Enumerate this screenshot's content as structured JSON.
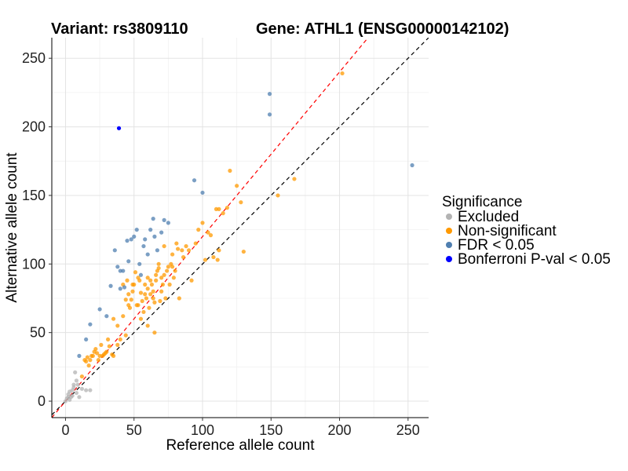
{
  "chart_data": {
    "type": "scatter",
    "title_left": "Variant: rs3809110",
    "title_right": "Gene: ATHL1 (ENSG00000142102)",
    "xlabel": "Reference allele count",
    "ylabel": "Alternative allele count",
    "xlim": [
      -10,
      265
    ],
    "ylim": [
      -12,
      265
    ],
    "xticks": [
      0,
      50,
      100,
      150,
      200,
      250
    ],
    "yticks": [
      0,
      50,
      100,
      150,
      200,
      250
    ],
    "grid": true,
    "legend": {
      "title": "Significance",
      "placement": "right",
      "entries": [
        {
          "label": "Excluded",
          "color": "#b3b3b3"
        },
        {
          "label": "Non-significant",
          "color": "#ff9900"
        },
        {
          "label": "FDR < 0.05",
          "color": "#4f7fb0"
        },
        {
          "label": "Bonferroni P-val < 0.05",
          "color": "#0000ff"
        }
      ]
    },
    "reference_lines": [
      {
        "slope": 1.0,
        "intercept": 0,
        "color": "#000000",
        "style": "dashed"
      },
      {
        "slope": 1.2,
        "intercept": 0,
        "color": "#ff0000",
        "style": "dashed"
      }
    ],
    "series": [
      {
        "name": "Excluded",
        "color": "#b3b3b3",
        "x": [
          0,
          1,
          2,
          3,
          3,
          4,
          5,
          5,
          6,
          7,
          8,
          9,
          10,
          12,
          15,
          18,
          8,
          2,
          6
        ],
        "y": [
          0,
          2,
          5,
          1,
          7,
          3,
          8,
          4,
          12,
          21,
          6,
          12,
          3,
          9,
          8,
          8,
          15,
          3,
          10
        ]
      },
      {
        "name": "Non-significant",
        "color": "#ff9900",
        "x": [
          12,
          14,
          15,
          16,
          17,
          18,
          19,
          20,
          21,
          22,
          23,
          24,
          25,
          26,
          27,
          28,
          29,
          30,
          31,
          32,
          34,
          35,
          38,
          40,
          42,
          44,
          45,
          46,
          47,
          48,
          49,
          50,
          51,
          52,
          53,
          54,
          55,
          55,
          56,
          57,
          58,
          59,
          60,
          60,
          61,
          62,
          63,
          64,
          65,
          65,
          66,
          67,
          68,
          69,
          70,
          70,
          71,
          72,
          73,
          74,
          75,
          76,
          77,
          78,
          79,
          80,
          81,
          82,
          83,
          85,
          86,
          88,
          90,
          92,
          95,
          97,
          100,
          102,
          104,
          106,
          108,
          110,
          111,
          112,
          112,
          115,
          118,
          120,
          125,
          128,
          130,
          155,
          167,
          202,
          35,
          38,
          42,
          46,
          60,
          64,
          66,
          53,
          58,
          44,
          49,
          72,
          78,
          62,
          68
        ],
        "y": [
          18,
          30,
          29,
          32,
          26,
          30,
          33,
          33,
          36,
          38,
          35,
          30,
          33,
          41,
          33,
          34,
          35,
          36,
          45,
          40,
          34,
          33,
          41,
          45,
          85,
          74,
          88,
          78,
          68,
          74,
          80,
          85,
          94,
          70,
          90,
          88,
          60,
          79,
          73,
          65,
          85,
          75,
          55,
          90,
          68,
          78,
          85,
          80,
          50,
          72,
          88,
          95,
          100,
          73,
          80,
          90,
          85,
          113,
          75,
          95,
          98,
          85,
          100,
          107,
          90,
          95,
          115,
          111,
          75,
          110,
          105,
          113,
          110,
          88,
          115,
          125,
          130,
          103,
          123,
          121,
          105,
          140,
          103,
          110,
          140,
          137,
          141,
          168,
          157,
          145,
          109,
          150,
          162,
          239,
          60,
          55,
          62,
          70,
          82,
          75,
          92,
          70,
          78,
          48,
          85,
          92,
          98,
          88,
          97
        ]
      },
      {
        "name": "FDR < 0.05",
        "color": "#4f7fb0",
        "x": [
          10,
          15,
          18,
          25,
          30,
          33,
          36,
          38,
          40,
          42,
          43,
          45,
          48,
          50,
          52,
          54,
          55,
          57,
          58,
          60,
          62,
          64,
          65,
          67,
          70,
          72,
          75,
          94,
          100,
          149,
          149,
          253,
          40,
          46
        ],
        "y": [
          33,
          45,
          56,
          67,
          62,
          84,
          110,
          98,
          82,
          95,
          83,
          117,
          118,
          120,
          125,
          100,
          92,
          113,
          118,
          107,
          125,
          133,
          120,
          110,
          123,
          132,
          130,
          161,
          152,
          224,
          209,
          172,
          95,
          102
        ]
      },
      {
        "name": "Bonferroni P-val < 0.05",
        "color": "#0000ff",
        "x": [
          39
        ],
        "y": [
          199
        ]
      }
    ]
  }
}
